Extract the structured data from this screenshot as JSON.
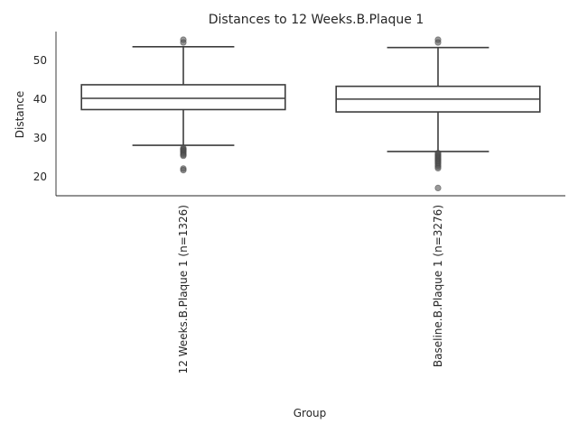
{
  "chart_data": {
    "type": "box",
    "title": "Distances to 12 Weeks.B.Plaque 1",
    "xlabel": "Group",
    "ylabel": "Distance",
    "ylim": [
      15,
      57.3
    ],
    "yticks": [
      20,
      30,
      40,
      50
    ],
    "grid": false,
    "categories": [
      "12 Weeks.B.Plaque 1 (n=1326)",
      "Baseline.B.Plaque 1 (n=3276)"
    ],
    "boxes": [
      {
        "category": "12 Weeks.B.Plaque 1 (n=1326)",
        "whisker_low": 28.0,
        "q1": 37.2,
        "median": 40.1,
        "q3": 43.6,
        "whisker_high": 53.4,
        "outliers": [
          55.2,
          54.5,
          27.3,
          27.0,
          26.8,
          26.5,
          26.2,
          25.9,
          25.6,
          25.3,
          22.0,
          21.6
        ]
      },
      {
        "category": "Baseline.B.Plaque 1 (n=3276)",
        "whisker_low": 26.4,
        "q1": 36.6,
        "median": 39.9,
        "q3": 43.2,
        "whisker_high": 53.2,
        "outliers": [
          55.2,
          54.5,
          26.0,
          25.7,
          25.4,
          25.1,
          24.8,
          24.5,
          24.2,
          23.9,
          23.6,
          23.3,
          22.9,
          22.5,
          22.1,
          17.0
        ]
      }
    ]
  }
}
